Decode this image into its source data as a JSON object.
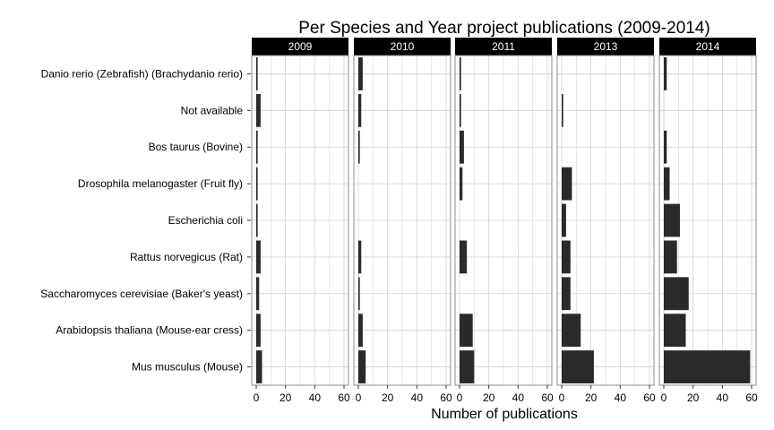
{
  "chart_data": {
    "type": "bar",
    "orientation": "horizontal",
    "title": "Per Species and Year project publications (2009-2014)",
    "xlabel": "Number of publications",
    "ylabel": "",
    "xlim": [
      0,
      60
    ],
    "x_ticks": [
      0,
      20,
      40,
      60
    ],
    "grid": true,
    "panels": [
      "2009",
      "2010",
      "2011",
      "2013",
      "2014"
    ],
    "categories": [
      "Danio rerio (Zebrafish) (Brachydanio rerio)",
      "Not available",
      "Bos taurus (Bovine)",
      "Drosophila melanogaster (Fruit fly)",
      "Escherichia coli",
      "Rattus norvegicus (Rat)",
      "Saccharomyces cerevisiae (Baker's yeast)",
      "Arabidopsis thaliana (Mouse-ear cress)",
      "Mus musculus (Mouse)"
    ],
    "series": [
      {
        "panel": "2009",
        "values": [
          1,
          3,
          1,
          1,
          1,
          3,
          2,
          3,
          4
        ]
      },
      {
        "panel": "2010",
        "values": [
          3,
          2,
          1,
          0,
          0,
          2,
          1,
          3,
          5
        ]
      },
      {
        "panel": "2011",
        "values": [
          1,
          1,
          3,
          2,
          0,
          5,
          0,
          9,
          10
        ]
      },
      {
        "panel": "2013",
        "values": [
          0,
          1,
          0,
          7,
          3,
          6,
          6,
          13,
          22
        ]
      },
      {
        "panel": "2014",
        "values": [
          2,
          0,
          2,
          4,
          11,
          9,
          17,
          15,
          59
        ]
      }
    ],
    "colors": {
      "bar": "#2a2a2a",
      "strip": "#000000",
      "grid": "#d0d0d0",
      "border": "#8c8c8c"
    }
  }
}
